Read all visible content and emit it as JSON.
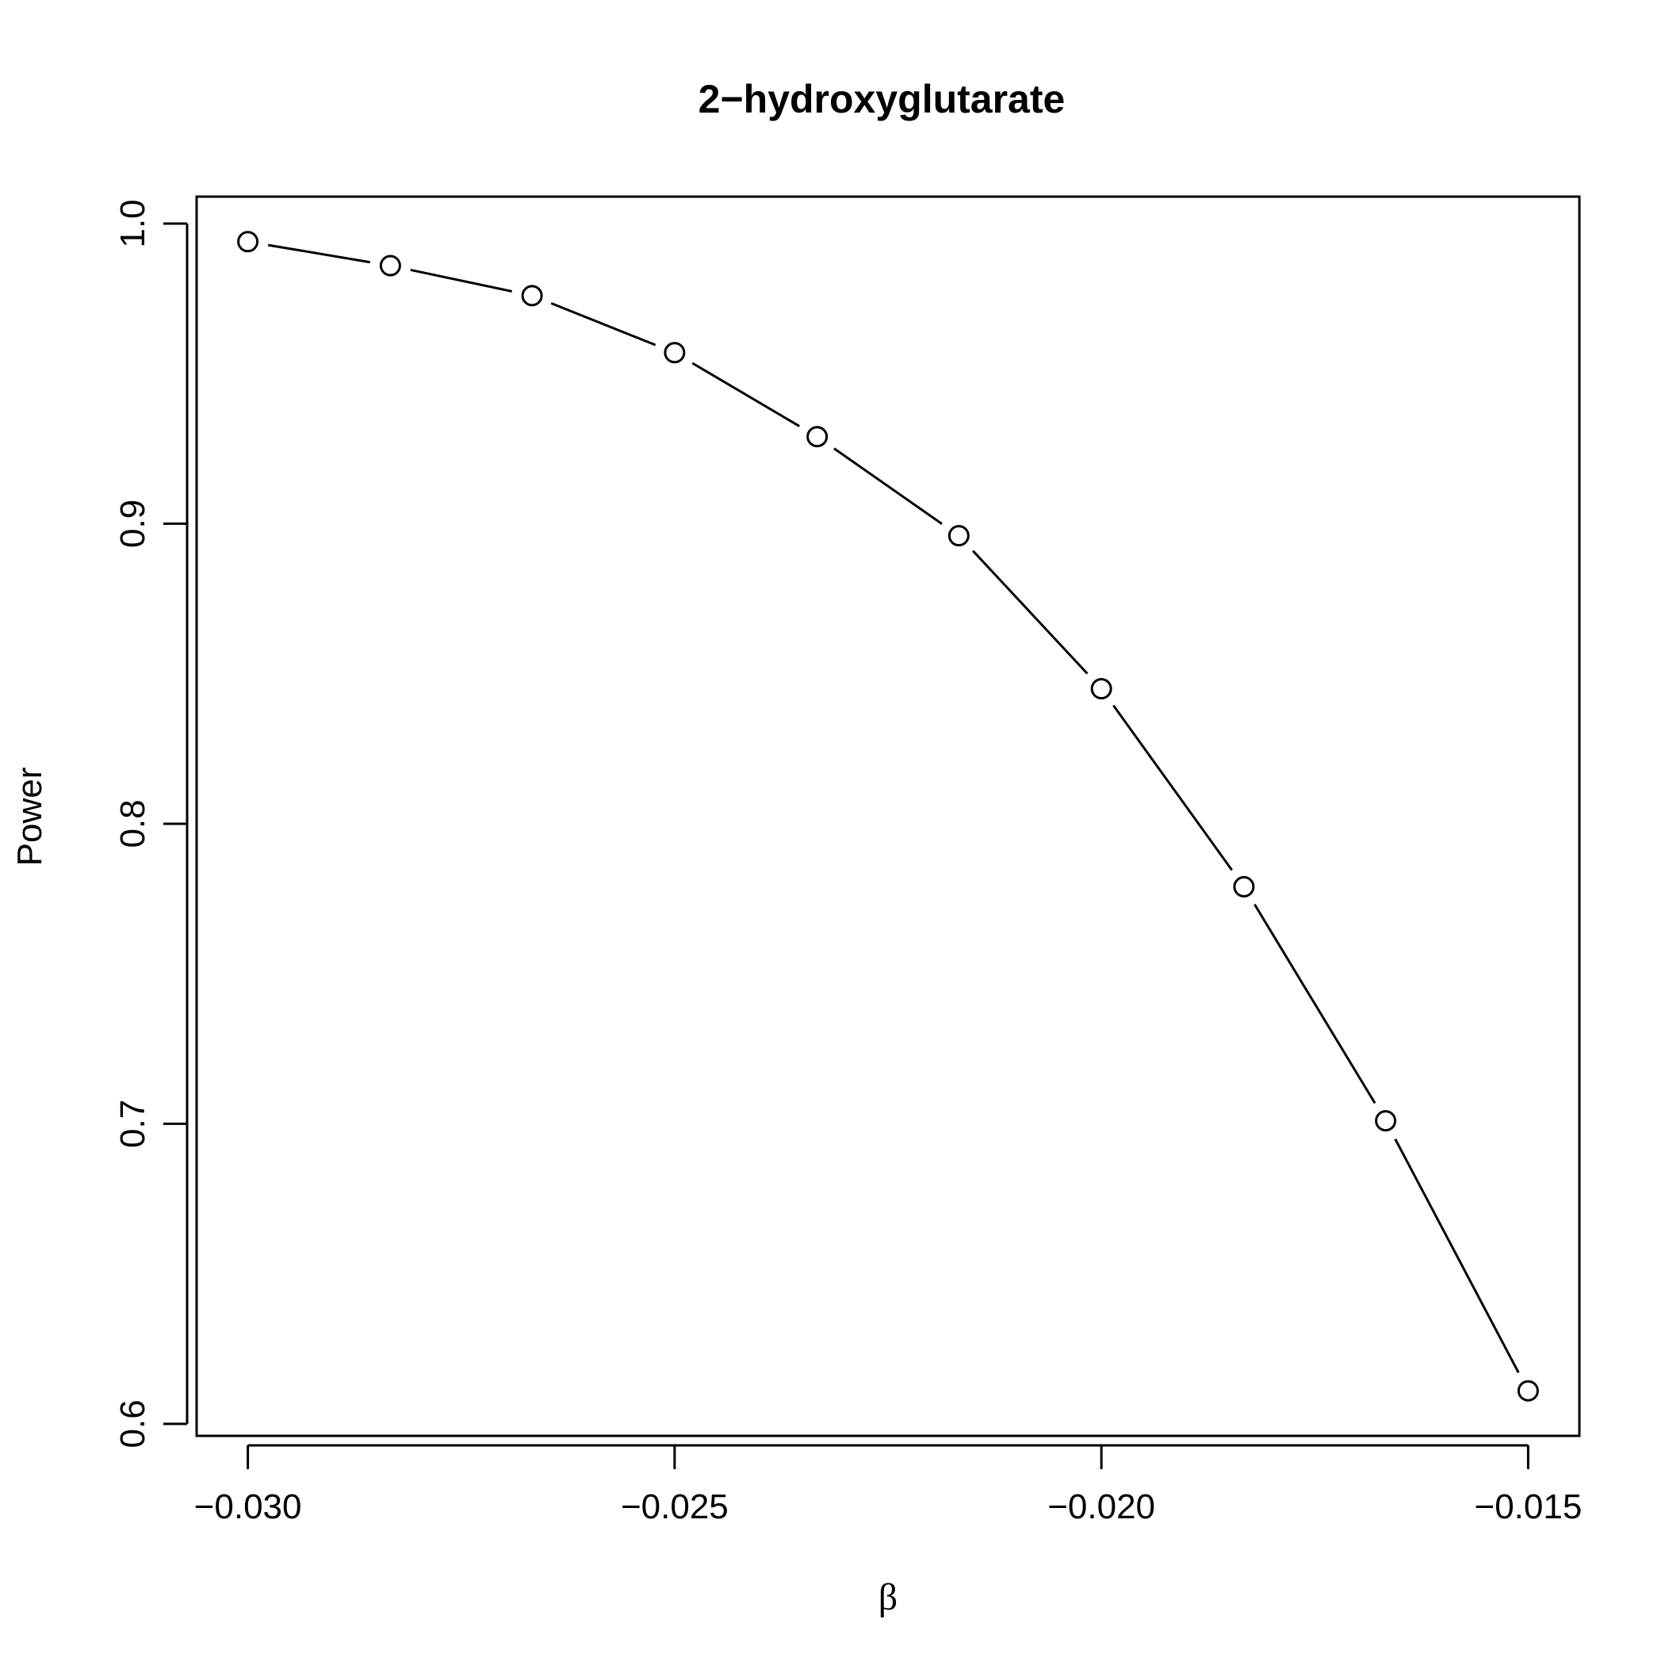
{
  "chart_data": {
    "type": "line",
    "title": "2−hydroxyglutarate",
    "xlabel": "β",
    "ylabel": "Power",
    "xlim": [
      -0.0306,
      -0.0144
    ],
    "ylim": [
      0.596,
      1.009
    ],
    "xticks": [
      -0.03,
      -0.025,
      -0.02,
      -0.015
    ],
    "xtick_labels": [
      "−0.030",
      "−0.025",
      "−0.020",
      "−0.015"
    ],
    "yticks": [
      0.6,
      0.7,
      0.8,
      0.9,
      1.0
    ],
    "ytick_labels": [
      "0.6",
      "0.7",
      "0.8",
      "0.9",
      "1.0"
    ],
    "grid": false,
    "markers": "open-circle",
    "x": [
      -0.03,
      -0.02833,
      -0.02667,
      -0.025,
      -0.02333,
      -0.02167,
      -0.02,
      -0.01833,
      -0.01667,
      -0.015
    ],
    "values": [
      0.994,
      0.986,
      0.976,
      0.957,
      0.929,
      0.896,
      0.845,
      0.779,
      0.701,
      0.611
    ]
  }
}
